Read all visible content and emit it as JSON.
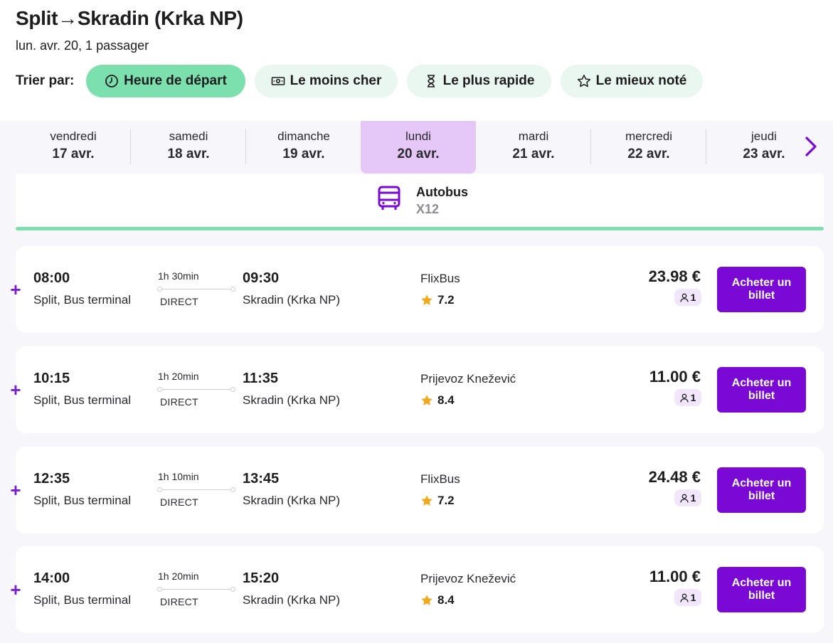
{
  "header": {
    "title": "Split→Skradin (Krka NP)",
    "subtitle": "lun. avr. 20, 1 passager",
    "sort_label": "Trier par:",
    "sort_options": [
      {
        "label": "Heure de départ",
        "icon": "clock-icon",
        "active": true
      },
      {
        "label": "Le moins cher",
        "icon": "banknote-icon",
        "active": false
      },
      {
        "label": "Le plus rapide",
        "icon": "hourglass-icon",
        "active": false
      },
      {
        "label": "Le mieux noté",
        "icon": "star-outline-icon",
        "active": false
      }
    ]
  },
  "days": [
    {
      "name": "vendredi",
      "date": "17 avr."
    },
    {
      "name": "samedi",
      "date": "18 avr."
    },
    {
      "name": "dimanche",
      "date": "19 avr."
    },
    {
      "name": "lundi",
      "date": "20 avr.",
      "active": true
    },
    {
      "name": "mardi",
      "date": "21 avr."
    },
    {
      "name": "mercredi",
      "date": "22 avr."
    },
    {
      "name": "jeudi",
      "date": "23 avr."
    }
  ],
  "transport": {
    "name": "Autobus",
    "code": "X12",
    "icon": "bus-icon"
  },
  "trips": [
    {
      "depart_time": "08:00",
      "depart_place": "Split, Bus terminal",
      "duration": "1h 30min",
      "type": "DIRECT",
      "arrive_time": "09:30",
      "arrive_place": "Skradin (Krka NP)",
      "operator": "FlixBus",
      "rating": "7.2",
      "price": "23.98 €",
      "passengers": "1",
      "buy_label": "Acheter un billet"
    },
    {
      "depart_time": "10:15",
      "depart_place": "Split, Bus terminal",
      "duration": "1h 20min",
      "type": "DIRECT",
      "arrive_time": "11:35",
      "arrive_place": "Skradin (Krka NP)",
      "operator": "Prijevoz Knežević",
      "rating": "8.4",
      "price": "11.00 €",
      "passengers": "1",
      "buy_label": "Acheter un billet"
    },
    {
      "depart_time": "12:35",
      "depart_place": "Split, Bus terminal",
      "duration": "1h 10min",
      "type": "DIRECT",
      "arrive_time": "13:45",
      "arrive_place": "Skradin (Krka NP)",
      "operator": "FlixBus",
      "rating": "7.2",
      "price": "24.48 €",
      "passengers": "1",
      "buy_label": "Acheter un billet"
    },
    {
      "depart_time": "14:00",
      "depart_place": "Split, Bus terminal",
      "duration": "1h 20min",
      "type": "DIRECT",
      "arrive_time": "15:20",
      "arrive_place": "Skradin (Krka NP)",
      "operator": "Prijevoz Knežević",
      "rating": "8.4",
      "price": "11.00 €",
      "passengers": "1",
      "buy_label": "Acheter un billet"
    }
  ],
  "colors": {
    "accent_purple": "#7a09d5",
    "accent_green": "#7be0ae",
    "active_day": "#e4c7f7",
    "star": "#f0a81c"
  }
}
